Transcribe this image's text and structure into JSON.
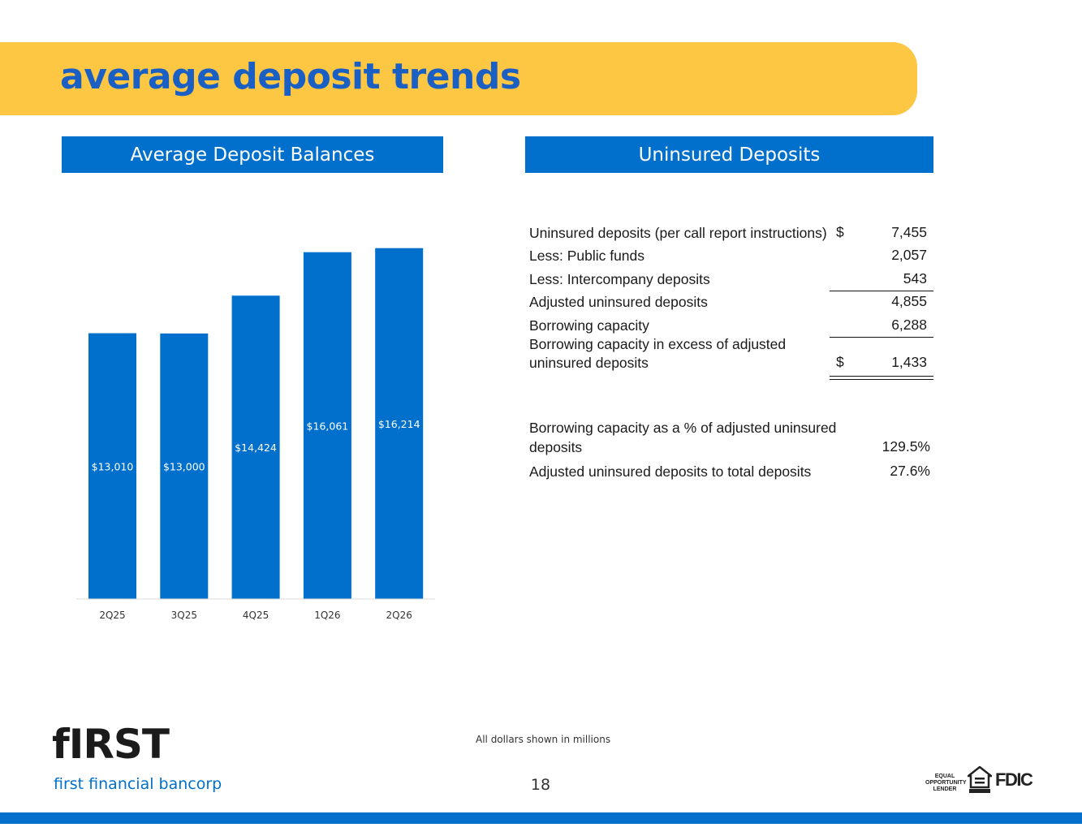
{
  "title": "average deposit trends",
  "left_panel": {
    "header": "Average Deposit Balances"
  },
  "right_panel": {
    "header": "Uninsured Deposits",
    "rows": [
      {
        "label": "Uninsured deposits (per call report instructions)",
        "currency": "$",
        "value": "7,455"
      },
      {
        "label": "Less: Public funds",
        "currency": "",
        "value": "2,057"
      },
      {
        "label": "Less: Intercompany deposits",
        "currency": "",
        "value": "543"
      },
      {
        "label": "Adjusted uninsured deposits",
        "currency": "",
        "value": "4,855"
      },
      {
        "label": "Borrowing capacity",
        "currency": "",
        "value": "6,288"
      },
      {
        "label_line1": "Borrowing capacity in excess of adjusted",
        "label_line2": "uninsured deposits",
        "currency": "$",
        "value": "1,433"
      },
      {
        "label_line1": "Borrowing capacity as a % of adjusted uninsured",
        "label_line2": "deposits",
        "value": "129.5%"
      },
      {
        "label": "Adjusted uninsured deposits to total deposits",
        "value": "27.6%"
      }
    ]
  },
  "chart_data": {
    "type": "bar",
    "categories": [
      "2Q25",
      "3Q25",
      "4Q25",
      "1Q26",
      "2Q26"
    ],
    "values": [
      13010,
      13000,
      14424,
      16061,
      16214
    ],
    "data_labels": [
      "$13,010",
      "$13,000",
      "$14,424",
      "$16,061",
      "$16,214"
    ],
    "bar_color": "#0070cc",
    "ylim": [
      3000,
      17000
    ],
    "grid": false,
    "legend": "none"
  },
  "footer": {
    "note": "All dollars shown in millions",
    "page_number": "18",
    "logo_word": "fIRST",
    "logo_subtitle": "first financial bancorp",
    "equal_opportunity": "EQUAL OPPORTUNITY LENDER",
    "fdic": "FDIC"
  },
  "colors": {
    "accent_yellow": "#fdc643",
    "brand_blue": "#0070cc",
    "title_blue": "#1a5fc4"
  },
  "icons": [
    "equal-housing-lender-icon"
  ]
}
